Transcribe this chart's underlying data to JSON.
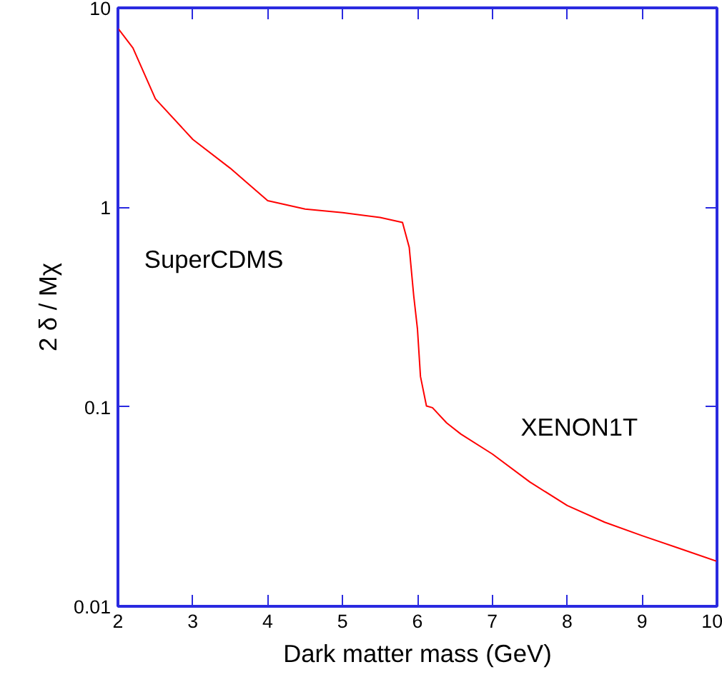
{
  "chart_data": {
    "type": "line",
    "xlabel": "Dark matter mass (GeV)",
    "ylabel": "2 δ / Mχ",
    "log": "y",
    "x": [
      2,
      2.2,
      2.5,
      3,
      3.5,
      4,
      4.5,
      5,
      5.5,
      5.8,
      5.89,
      5.95,
      6.0,
      6.04,
      6.12,
      6.2,
      6.39,
      6.58,
      7,
      7.5,
      8,
      8.5,
      9,
      9.5,
      10
    ],
    "series": [
      {
        "color": "#ff0000",
        "values": [
          7.9,
          6.3,
          3.5,
          2.19,
          1.57,
          1.08,
          0.98,
          0.94,
          0.89,
          0.84,
          0.63,
          0.36,
          0.245,
          0.142,
          0.101,
          0.099,
          0.083,
          0.073,
          0.058,
          0.042,
          0.032,
          0.0264,
          0.0226,
          0.0195,
          0.0168
        ]
      }
    ],
    "xlim": [
      2,
      10
    ],
    "ylim": [
      0.01,
      10
    ],
    "xticks": [
      2,
      3,
      4,
      5,
      6,
      7,
      8,
      9,
      10
    ],
    "yticks": [
      0.01,
      0.1,
      1,
      10
    ],
    "annotations": [
      "SuperCDMS",
      "XENON1T"
    ],
    "grid": false,
    "marker": "none",
    "line_style": "solid"
  }
}
